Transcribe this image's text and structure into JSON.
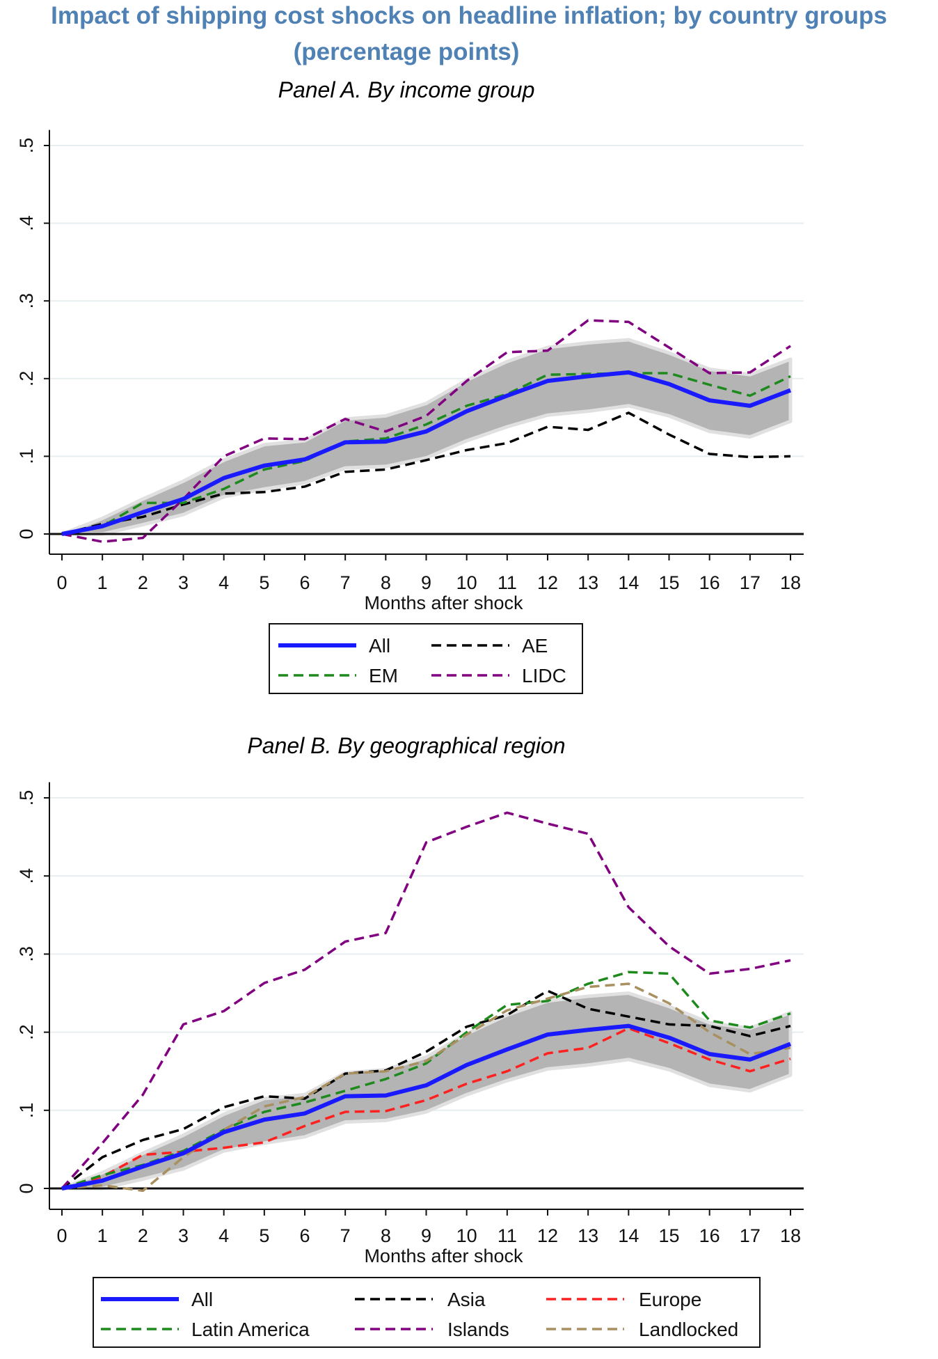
{
  "title_line1": "Impact of shipping cost shocks on headline inflation; by country groups",
  "title_line2": "(percentage  points)",
  "chart_data": [
    {
      "type": "line",
      "title": "Panel A. By income group",
      "xlabel": "Months after shock",
      "ylabel": "",
      "x": [
        0,
        1,
        2,
        3,
        4,
        5,
        6,
        7,
        8,
        9,
        10,
        11,
        12,
        13,
        14,
        15,
        16,
        17,
        18
      ],
      "xticks": [
        "0",
        "1",
        "2",
        "3",
        "4",
        "5",
        "6",
        "7",
        "8",
        "9",
        "10",
        "11",
        "12",
        "13",
        "14",
        "15",
        "16",
        "17",
        "18"
      ],
      "yticks": [
        "0",
        ".1",
        ".2",
        ".3",
        ".4",
        ".5"
      ],
      "ytick_values": [
        0,
        0.1,
        0.2,
        0.3,
        0.4,
        0.5
      ],
      "xlim": [
        0,
        18
      ],
      "ylim": [
        -0.028,
        0.52
      ],
      "grid": true,
      "legend_position": "bottom",
      "confidence_band": {
        "upper": [
          0,
          0.02,
          0.045,
          0.068,
          0.095,
          0.115,
          0.12,
          0.148,
          0.152,
          0.168,
          0.198,
          0.222,
          0.24,
          0.246,
          0.25,
          0.233,
          0.212,
          0.205,
          0.225
        ],
        "lower": [
          0,
          0.0,
          0.012,
          0.025,
          0.048,
          0.058,
          0.066,
          0.085,
          0.087,
          0.098,
          0.12,
          0.138,
          0.153,
          0.158,
          0.165,
          0.152,
          0.132,
          0.125,
          0.145
        ]
      },
      "series": [
        {
          "name": "All",
          "color": "#1a1aff",
          "style": "solid",
          "values": [
            0,
            0.01,
            0.028,
            0.045,
            0.072,
            0.088,
            0.096,
            0.118,
            0.119,
            0.132,
            0.158,
            0.178,
            0.197,
            0.203,
            0.208,
            0.193,
            0.172,
            0.165,
            0.185
          ]
        },
        {
          "name": "AE",
          "color": "#000000",
          "style": "dash",
          "values": [
            0,
            0.013,
            0.022,
            0.038,
            0.052,
            0.054,
            0.061,
            0.08,
            0.083,
            0.095,
            0.108,
            0.117,
            0.138,
            0.134,
            0.156,
            0.128,
            0.103,
            0.099,
            0.1
          ]
        },
        {
          "name": "EM",
          "color": "#1e8a1e",
          "style": "dash",
          "values": [
            0,
            0.01,
            0.04,
            0.04,
            0.058,
            0.083,
            0.094,
            0.119,
            0.123,
            0.141,
            0.165,
            0.18,
            0.205,
            0.206,
            0.207,
            0.207,
            0.192,
            0.178,
            0.203
          ]
        },
        {
          "name": "LIDC",
          "color": "#800080",
          "style": "dash",
          "values": [
            0,
            -0.01,
            -0.005,
            0.045,
            0.1,
            0.123,
            0.122,
            0.148,
            0.132,
            0.152,
            0.197,
            0.234,
            0.236,
            0.275,
            0.273,
            0.24,
            0.207,
            0.208,
            0.242
          ]
        }
      ]
    },
    {
      "type": "line",
      "title": "Panel B. By geographical region",
      "xlabel": "Months after shock",
      "ylabel": "",
      "x": [
        0,
        1,
        2,
        3,
        4,
        5,
        6,
        7,
        8,
        9,
        10,
        11,
        12,
        13,
        14,
        15,
        16,
        17,
        18
      ],
      "xticks": [
        "0",
        "1",
        "2",
        "3",
        "4",
        "5",
        "6",
        "7",
        "8",
        "9",
        "10",
        "11",
        "12",
        "13",
        "14",
        "15",
        "16",
        "17",
        "18"
      ],
      "yticks": [
        "0",
        ".1",
        ".2",
        ".3",
        ".4",
        ".5"
      ],
      "ytick_values": [
        0,
        0.1,
        0.2,
        0.3,
        0.4,
        0.5
      ],
      "xlim": [
        0,
        18
      ],
      "ylim": [
        -0.027,
        0.52
      ],
      "grid": true,
      "legend_position": "bottom",
      "confidence_band": {
        "upper": [
          0,
          0.02,
          0.045,
          0.068,
          0.095,
          0.115,
          0.12,
          0.148,
          0.152,
          0.168,
          0.198,
          0.222,
          0.24,
          0.246,
          0.25,
          0.233,
          0.212,
          0.205,
          0.225
        ],
        "lower": [
          0,
          0.0,
          0.012,
          0.025,
          0.048,
          0.058,
          0.066,
          0.085,
          0.087,
          0.098,
          0.12,
          0.138,
          0.153,
          0.158,
          0.165,
          0.152,
          0.132,
          0.125,
          0.145
        ]
      },
      "series": [
        {
          "name": "All",
          "color": "#1a1aff",
          "style": "solid",
          "values": [
            0,
            0.01,
            0.028,
            0.045,
            0.072,
            0.088,
            0.096,
            0.118,
            0.119,
            0.132,
            0.158,
            0.178,
            0.197,
            0.203,
            0.208,
            0.193,
            0.172,
            0.165,
            0.185
          ]
        },
        {
          "name": "Asia",
          "color": "#000000",
          "style": "dash",
          "values": [
            0,
            0.04,
            0.062,
            0.076,
            0.104,
            0.118,
            0.115,
            0.147,
            0.151,
            0.175,
            0.207,
            0.222,
            0.253,
            0.23,
            0.22,
            0.21,
            0.208,
            0.195,
            0.208
          ]
        },
        {
          "name": "Europe",
          "color": "#ff2020",
          "style": "dash",
          "values": [
            0,
            0.015,
            0.043,
            0.047,
            0.052,
            0.059,
            0.08,
            0.098,
            0.099,
            0.113,
            0.134,
            0.15,
            0.173,
            0.18,
            0.205,
            0.186,
            0.165,
            0.15,
            0.166
          ]
        },
        {
          "name": "Latin America",
          "color": "#1e8a1e",
          "style": "dash",
          "values": [
            0,
            0.017,
            0.03,
            0.048,
            0.075,
            0.098,
            0.11,
            0.125,
            0.14,
            0.16,
            0.2,
            0.235,
            0.24,
            0.262,
            0.277,
            0.275,
            0.215,
            0.206,
            0.224
          ]
        },
        {
          "name": "Islands",
          "color": "#800080",
          "style": "dash",
          "values": [
            0,
            0.058,
            0.12,
            0.21,
            0.227,
            0.263,
            0.28,
            0.316,
            0.327,
            0.443,
            0.463,
            0.481,
            0.467,
            0.454,
            0.36,
            0.31,
            0.275,
            0.281,
            0.292
          ]
        },
        {
          "name": "Landlocked",
          "color": "#a89060",
          "style": "dash",
          "values": [
            0,
            0.004,
            -0.003,
            0.04,
            0.075,
            0.105,
            0.117,
            0.147,
            0.15,
            0.163,
            0.197,
            0.228,
            0.243,
            0.258,
            0.262,
            0.237,
            0.2,
            0.172,
            0.18
          ]
        }
      ]
    }
  ]
}
